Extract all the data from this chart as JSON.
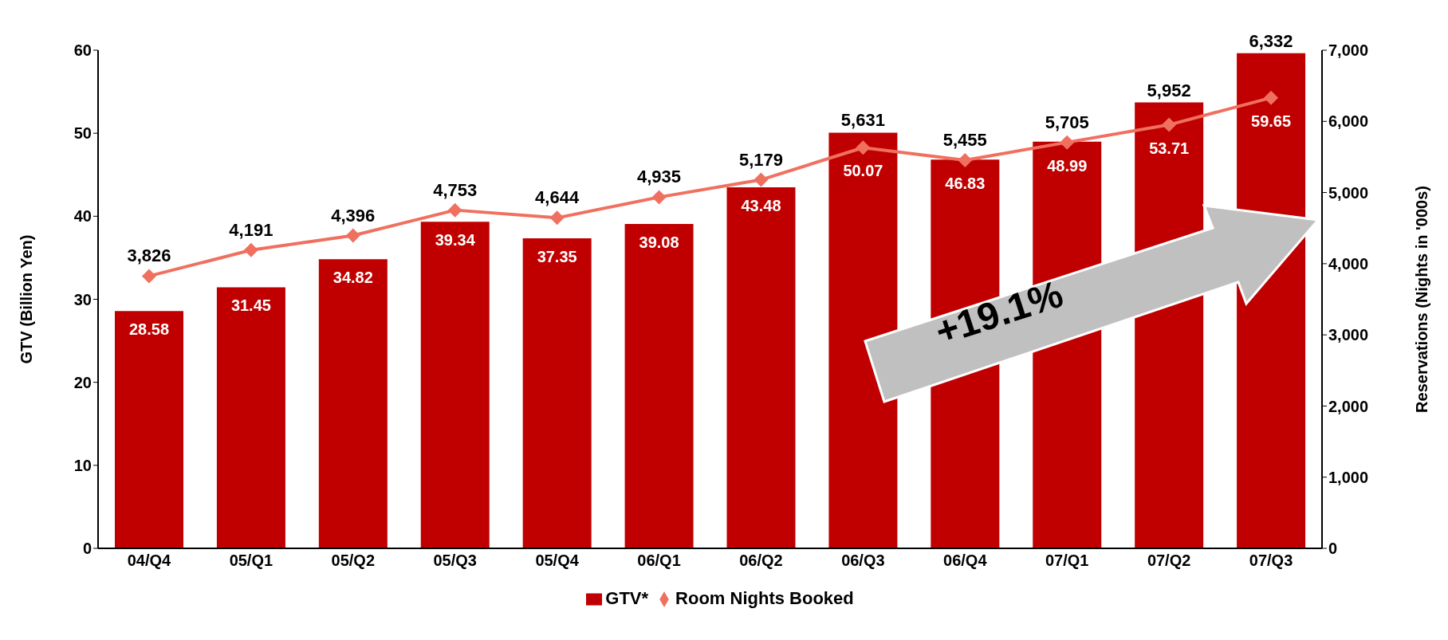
{
  "chart_data": {
    "type": "bar",
    "categories": [
      "04/Q4",
      "05/Q1",
      "05/Q2",
      "05/Q3",
      "05/Q4",
      "06/Q1",
      "06/Q2",
      "06/Q3",
      "06/Q4",
      "07/Q1",
      "07/Q2",
      "07/Q3"
    ],
    "series": [
      {
        "name": "GTV*",
        "color": "#c00000",
        "values": [
          28.58,
          31.45,
          34.82,
          39.34,
          37.35,
          39.08,
          43.48,
          50.07,
          46.83,
          48.99,
          53.71,
          59.65
        ]
      },
      {
        "name": "Room Nights Booked",
        "type": "line",
        "axis": "y2",
        "color": "#f07060",
        "marker": "diamond",
        "values": [
          3826,
          4191,
          4396,
          4753,
          4644,
          4935,
          5179,
          5631,
          5455,
          5705,
          5952,
          6332
        ],
        "value_labels": [
          "3,826",
          "4,191",
          "4,396",
          "4,753",
          "4,644",
          "4,935",
          "5,179",
          "5,631",
          "5,455",
          "5,705",
          "5,952",
          "6,332"
        ]
      }
    ],
    "ylabel": "GTV (Billion Yen)",
    "y2label": "Reservations (Nights in '000s)",
    "ylim": [
      0,
      60
    ],
    "yticks": [
      0,
      10,
      20,
      30,
      40,
      50,
      60
    ],
    "y2lim": [
      0,
      7000
    ],
    "y2ticks": [
      {
        "value": 0,
        "label": "0"
      },
      {
        "value": 1000,
        "label": "1,000"
      },
      {
        "value": 2000,
        "label": "2,000"
      },
      {
        "value": 3000,
        "label": "3,000"
      },
      {
        "value": 4000,
        "label": "4,000"
      },
      {
        "value": 5000,
        "label": "5,000"
      },
      {
        "value": 6000,
        "label": "6,000"
      },
      {
        "value": 7000,
        "label": "7,000"
      }
    ],
    "annotations": [
      "+19.1%"
    ],
    "data_labels": true,
    "grid": false,
    "legend": "bottom"
  }
}
